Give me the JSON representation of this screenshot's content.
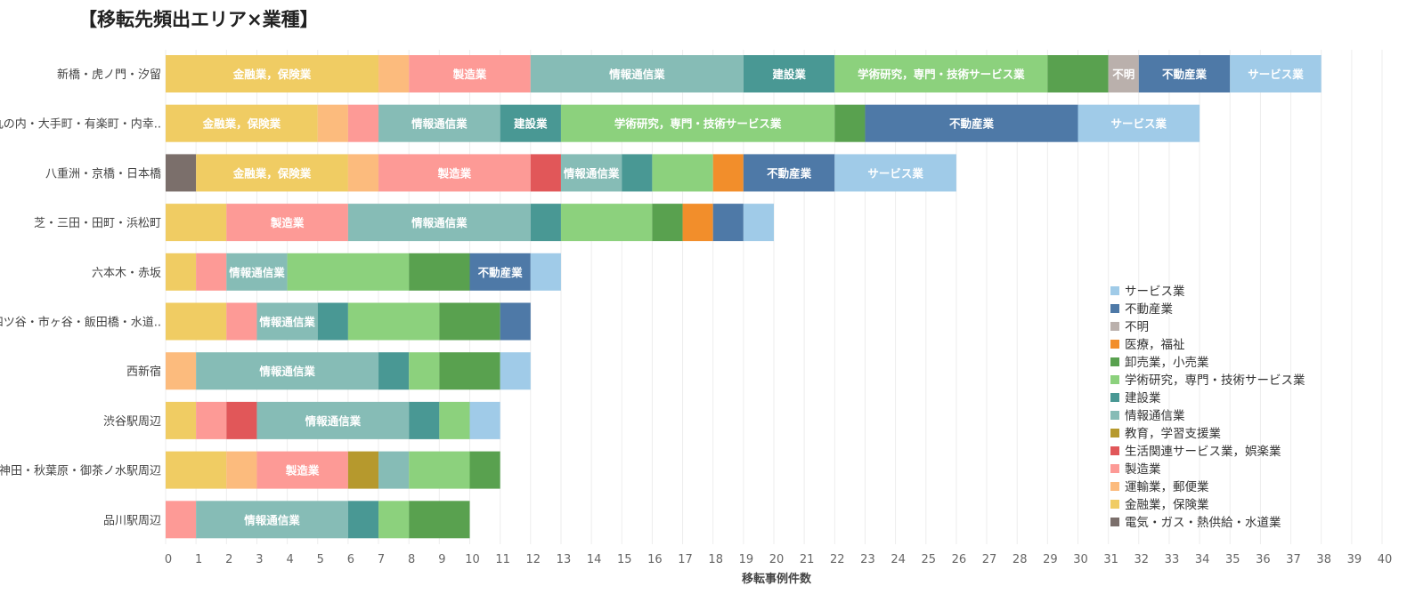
{
  "chart_data": {
    "type": "bar",
    "orientation": "horizontal",
    "stacked": true,
    "title": "【移転先頻出エリア×業種】",
    "xlabel": "移転事例件数",
    "ylabel": "",
    "xlim": [
      0,
      40
    ],
    "xticks": [
      0,
      1,
      2,
      3,
      4,
      5,
      6,
      7,
      8,
      9,
      10,
      11,
      12,
      13,
      14,
      15,
      16,
      17,
      18,
      19,
      20,
      21,
      22,
      23,
      24,
      25,
      26,
      27,
      28,
      29,
      30,
      31,
      32,
      33,
      34,
      35,
      36,
      37,
      38,
      39,
      40
    ],
    "grid": true,
    "legend_position": "bottom-right",
    "categories": [
      "新橋・虎ノ門・汐留",
      "丸の内・大手町・有楽町・内幸..",
      "八重洲・京橋・日本橋",
      "芝・三田・田町・浜松町",
      "六本木・赤坂",
      "四ツ谷・市ヶ谷・飯田橋・水道..",
      "西新宿",
      "渋谷駅周辺",
      "神田・秋葉原・御茶ノ水駅周辺",
      "品川駅周辺"
    ],
    "series": [
      {
        "name": "電気・ガス・熱供給・水道業",
        "color": "#7b6f6b",
        "values": [
          0,
          0,
          1,
          0,
          0,
          0,
          0,
          0,
          0,
          0
        ]
      },
      {
        "name": "金融業，保険業",
        "color": "#f0cc63",
        "values": [
          7,
          5,
          5,
          2,
          1,
          2,
          0,
          1,
          2,
          0
        ]
      },
      {
        "name": "運輸業，郵便業",
        "color": "#fcbb7d",
        "values": [
          1,
          1,
          1,
          0,
          0,
          0,
          1,
          0,
          1,
          0
        ]
      },
      {
        "name": "製造業",
        "color": "#fd9a96",
        "values": [
          4,
          1,
          5,
          4,
          1,
          1,
          0,
          1,
          3,
          1
        ]
      },
      {
        "name": "生活関連サービス業，娯楽業",
        "color": "#e15759",
        "values": [
          0,
          0,
          1,
          0,
          0,
          0,
          0,
          1,
          0,
          0
        ]
      },
      {
        "name": "教育，学習支援業",
        "color": "#b6992d",
        "values": [
          0,
          0,
          0,
          0,
          0,
          0,
          0,
          0,
          1,
          0
        ]
      },
      {
        "name": "情報通信業",
        "color": "#86bcb6",
        "values": [
          7,
          4,
          2,
          6,
          2,
          2,
          6,
          5,
          1,
          5
        ]
      },
      {
        "name": "建設業",
        "color": "#499894",
        "values": [
          3,
          2,
          1,
          1,
          0,
          1,
          1,
          1,
          0,
          1
        ]
      },
      {
        "name": "学術研究，専門・技術サービス業",
        "color": "#8cd17d",
        "values": [
          7,
          9,
          2,
          3,
          4,
          3,
          1,
          1,
          2,
          1
        ]
      },
      {
        "name": "卸売業，小売業",
        "color": "#59a14f",
        "values": [
          2,
          1,
          0,
          1,
          2,
          2,
          2,
          0,
          1,
          2
        ]
      },
      {
        "name": "医療，福祉",
        "color": "#f28e2b",
        "values": [
          0,
          0,
          1,
          1,
          0,
          0,
          0,
          0,
          0,
          0
        ]
      },
      {
        "name": "不明",
        "color": "#bab0ac",
        "values": [
          1,
          0,
          0,
          0,
          0,
          0,
          0,
          0,
          0,
          0
        ]
      },
      {
        "name": "不動産業",
        "color": "#4e79a7",
        "values": [
          3,
          7,
          3,
          1,
          2,
          1,
          0,
          0,
          0,
          0
        ]
      },
      {
        "name": "サービス業",
        "color": "#a0cbe8",
        "values": [
          3,
          4,
          4,
          1,
          1,
          0,
          1,
          1,
          0,
          0
        ]
      }
    ],
    "segment_labels": [
      [
        "",
        "金融業，保険業",
        "",
        "製造業",
        "",
        "",
        "情報通信業",
        "建設業",
        "学術研究，専門・技術サービス業",
        "",
        "",
        "不明",
        "不動産業",
        "サービス業"
      ],
      [
        "",
        "金融業，保険業",
        "",
        "",
        "",
        "",
        "情報通信業",
        "建設業",
        "学術研究，専門・技術サービス業",
        "",
        "",
        "",
        "不動産業",
        "サービス業"
      ],
      [
        "",
        "金融業，保険業",
        "",
        "製造業",
        "",
        "",
        "情報通信業",
        "",
        "",
        "",
        "",
        "",
        "不動産業",
        "サービス業"
      ],
      [
        "",
        "",
        "",
        "製造業",
        "",
        "",
        "情報通信業",
        "",
        "",
        "",
        "",
        "",
        "",
        ""
      ],
      [
        "",
        "",
        "",
        "",
        "",
        "",
        "情報通信業",
        "",
        "",
        "",
        "",
        "",
        "不動産業",
        ""
      ],
      [
        "",
        "",
        "",
        "",
        "",
        "",
        "情報通信業",
        "",
        "",
        "",
        "",
        "",
        "",
        ""
      ],
      [
        "",
        "",
        "",
        "",
        "",
        "",
        "情報通信業",
        "",
        "",
        "",
        "",
        "",
        "",
        ""
      ],
      [
        "",
        "",
        "",
        "",
        "",
        "",
        "情報通信業",
        "",
        "",
        "",
        "",
        "",
        "",
        ""
      ],
      [
        "",
        "",
        "",
        "製造業",
        "",
        "",
        "",
        "",
        "",
        "",
        "",
        "",
        "",
        ""
      ],
      [
        "",
        "",
        "",
        "",
        "",
        "",
        "情報通信業",
        "",
        "",
        "",
        "",
        "",
        "",
        ""
      ]
    ],
    "legend_order": [
      "サービス業",
      "不動産業",
      "不明",
      "医療，福祉",
      "卸売業，小売業",
      "学術研究，専門・技術サービス業",
      "建設業",
      "情報通信業",
      "教育，学習支援業",
      "生活関連サービス業，娯楽業",
      "製造業",
      "運輸業，郵便業",
      "金融業，保険業",
      "電気・ガス・熱供給・水道業"
    ]
  }
}
